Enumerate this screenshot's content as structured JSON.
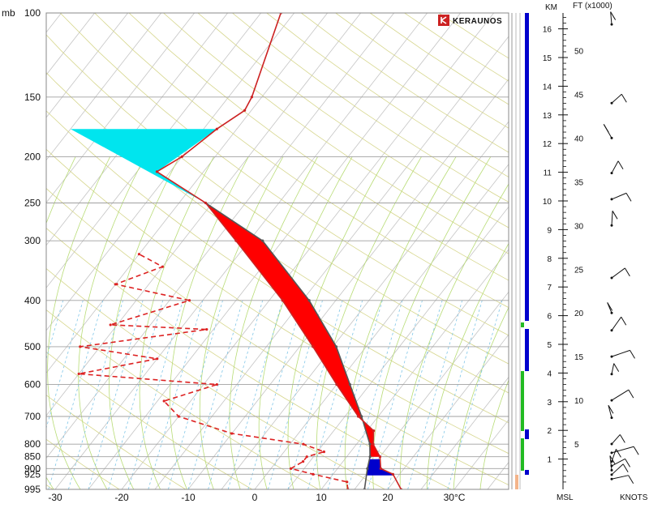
{
  "chart_data": {
    "type": "skew-t log-p",
    "brand": "KERAUNOS",
    "pressure_unit": "mb",
    "pressure_levels": [
      100,
      150,
      200,
      250,
      300,
      400,
      500,
      600,
      700,
      800,
      850,
      900,
      925,
      995
    ],
    "temperature_ticks": [
      "-30",
      "-20",
      "-10",
      "0",
      "10",
      "20",
      "30°C"
    ],
    "temperature_tick_values": [
      -30,
      -20,
      -10,
      0,
      10,
      20,
      30
    ],
    "km_label": "KM",
    "km_ticks": [
      1,
      2,
      3,
      4,
      5,
      6,
      7,
      8,
      9,
      10,
      11,
      12,
      13,
      14,
      15,
      16
    ],
    "ft_label": "FT (x1000)",
    "ft_ticks": [
      5,
      10,
      15,
      20,
      25,
      30,
      35,
      40,
      45,
      50
    ],
    "msl_label": "MSL",
    "knots_label": "KNOTS",
    "temperature_profile": [
      {
        "p": 995,
        "t": 22
      },
      {
        "p": 925,
        "t": 19
      },
      {
        "p": 900,
        "t": 16.5
      },
      {
        "p": 850,
        "t": 15
      },
      {
        "p": 800,
        "t": 12.5
      },
      {
        "p": 750,
        "t": 11
      },
      {
        "p": 700,
        "t": 7
      },
      {
        "p": 600,
        "t": 0
      },
      {
        "p": 500,
        "t": -8
      },
      {
        "p": 400,
        "t": -18
      },
      {
        "p": 300,
        "t": -32
      },
      {
        "p": 250,
        "t": -41
      },
      {
        "p": 215,
        "t": -52
      },
      {
        "p": 200,
        "t": -50
      },
      {
        "p": 175,
        "t": -48
      },
      {
        "p": 160,
        "t": -46
      },
      {
        "p": 150,
        "t": -46.5
      },
      {
        "p": 100,
        "t": -52
      }
    ],
    "dewpoint_profile": [
      {
        "p": 995,
        "t": 14
      },
      {
        "p": 960,
        "t": 13
      },
      {
        "p": 925,
        "t": 7
      },
      {
        "p": 900,
        "t": 3
      },
      {
        "p": 870,
        "t": 4
      },
      {
        "p": 850,
        "t": 4
      },
      {
        "p": 830,
        "t": 6
      },
      {
        "p": 800,
        "t": 2
      },
      {
        "p": 760,
        "t": -10
      },
      {
        "p": 700,
        "t": -20
      },
      {
        "p": 650,
        "t": -24
      },
      {
        "p": 600,
        "t": -18
      },
      {
        "p": 570,
        "t": -40
      },
      {
        "p": 530,
        "t": -30
      },
      {
        "p": 500,
        "t": -43
      },
      {
        "p": 460,
        "t": -26
      },
      {
        "p": 450,
        "t": -41
      },
      {
        "p": 400,
        "t": -32
      },
      {
        "p": 370,
        "t": -45
      },
      {
        "p": 340,
        "t": -40
      },
      {
        "p": 320,
        "t": -45
      }
    ],
    "parcel_profile": [
      {
        "p": 995,
        "t": 16.5
      },
      {
        "p": 900,
        "t": 14.5
      },
      {
        "p": 850,
        "t": 13.5
      },
      {
        "p": 800,
        "t": 12
      },
      {
        "p": 700,
        "t": 7.5
      },
      {
        "p": 600,
        "t": 2
      },
      {
        "p": 500,
        "t": -4.5
      },
      {
        "p": 400,
        "t": -14
      },
      {
        "p": 300,
        "t": -28
      },
      {
        "p": 250,
        "t": -41
      }
    ],
    "cape_color": "#ff0000",
    "cin_color": "#0000cc",
    "tropopause_fill_color": "#00e5ee",
    "temperature_color": "#cc2222",
    "dewpoint_color": "#dd2222",
    "parcel_color": "#555555",
    "wind_levels_ft": [
      1,
      1.5,
      2,
      2.5,
      3,
      4,
      5,
      8,
      10,
      13,
      15,
      18,
      20,
      24,
      30,
      33,
      36,
      40,
      44,
      53
    ]
  }
}
